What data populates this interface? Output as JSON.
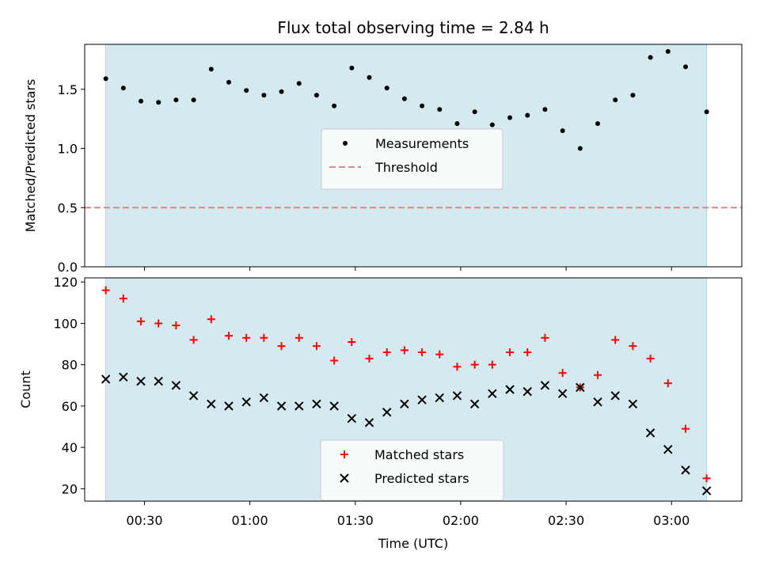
{
  "chart_data": {
    "title": "Flux total observing time = 2.84 h",
    "xlabel": "Time (UTC)",
    "xlim": [
      "00:13",
      "03:20"
    ],
    "x_ticks": [
      "00:30",
      "01:00",
      "01:30",
      "02:00",
      "02:30",
      "03:00"
    ],
    "shaded_span": [
      "00:19",
      "03:10"
    ],
    "times": [
      "00:19",
      "00:24",
      "00:29",
      "00:34",
      "00:39",
      "00:44",
      "00:49",
      "00:54",
      "00:59",
      "01:04",
      "01:09",
      "01:14",
      "01:19",
      "01:24",
      "01:29",
      "01:34",
      "01:39",
      "01:44",
      "01:49",
      "01:54",
      "01:59",
      "02:04",
      "02:09",
      "02:14",
      "02:19",
      "02:24",
      "02:29",
      "02:34",
      "02:39",
      "02:44",
      "02:49",
      "02:54",
      "02:59",
      "03:04",
      "03:10"
    ],
    "panels": [
      {
        "type": "scatter",
        "ylabel": "Matched/Predicted stars",
        "ylim": [
          0.0,
          1.88
        ],
        "y_ticks": [
          0.0,
          0.5,
          1.0,
          1.5
        ],
        "legend_position": "center",
        "series": [
          {
            "name": "Measurements",
            "marker": "dot",
            "color": "#000000",
            "values": [
              1.59,
              1.51,
              1.4,
              1.39,
              1.41,
              1.41,
              1.67,
              1.56,
              1.49,
              1.45,
              1.48,
              1.55,
              1.45,
              1.36,
              1.68,
              1.6,
              1.51,
              1.42,
              1.36,
              1.33,
              1.21,
              1.31,
              1.2,
              1.26,
              1.28,
              1.33,
              1.15,
              1.0,
              1.21,
              1.41,
              1.45,
              1.77,
              1.82,
              1.69,
              1.31
            ]
          }
        ],
        "lines": [
          {
            "name": "Threshold",
            "value": 0.5,
            "style": "dashed",
            "color": "#f08080"
          }
        ]
      },
      {
        "type": "scatter",
        "ylabel": "Count",
        "ylim": [
          14,
          122
        ],
        "y_ticks": [
          20,
          40,
          60,
          80,
          100,
          120
        ],
        "legend_position": "lower center",
        "series": [
          {
            "name": "Matched stars",
            "marker": "plus",
            "color": "#ff0000",
            "values": [
              116,
              112,
              101,
              100,
              99,
              92,
              102,
              94,
              93,
              93,
              89,
              93,
              89,
              82,
              91,
              83,
              86,
              87,
              86,
              85,
              79,
              80,
              80,
              86,
              86,
              93,
              76,
              69,
              75,
              92,
              89,
              83,
              71,
              49,
              25
            ]
          },
          {
            "name": "Predicted stars",
            "marker": "x",
            "color": "#000000",
            "values": [
              73,
              74,
              72,
              72,
              70,
              65,
              61,
              60,
              62,
              64,
              60,
              60,
              61,
              60,
              54,
              52,
              57,
              61,
              63,
              64,
              65,
              61,
              66,
              68,
              67,
              70,
              66,
              69,
              62,
              65,
              61,
              47,
              39,
              29,
              19
            ]
          }
        ]
      }
    ],
    "colors": {
      "shade": "#d4eaf0",
      "shade_edge": "#add8e6"
    }
  }
}
